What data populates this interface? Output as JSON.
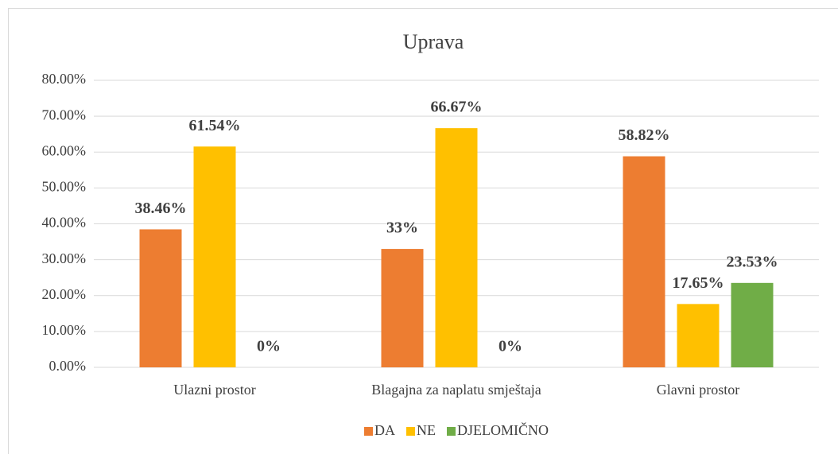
{
  "chart_data": {
    "type": "bar",
    "title": "Uprava",
    "categories": [
      "Ulazni prostor",
      "Blagajna za naplatu smještaja",
      "Glavni prostor"
    ],
    "series": [
      {
        "name": "DA",
        "color": "#ed7d31",
        "values": [
          38.46,
          33,
          58.82
        ],
        "value_labels": [
          "38.46%",
          "33%",
          "58.82%"
        ]
      },
      {
        "name": "NE",
        "color": "#ffc000",
        "values": [
          61.54,
          66.67,
          17.65
        ],
        "value_labels": [
          "61.54%",
          "66.67%",
          "17.65%"
        ]
      },
      {
        "name": "DJELOMIČNO",
        "color": "#70ad47",
        "values": [
          0,
          0,
          23.53
        ],
        "value_labels": [
          "0%",
          "0%",
          "23.53%"
        ]
      }
    ],
    "ylim": [
      0,
      80
    ],
    "yticks": [
      {
        "value": 0,
        "label": "0.00%"
      },
      {
        "value": 10,
        "label": "10.00%"
      },
      {
        "value": 20,
        "label": "20.00%"
      },
      {
        "value": 30,
        "label": "30.00%"
      },
      {
        "value": 40,
        "label": "40.00%"
      },
      {
        "value": 50,
        "label": "50.00%"
      },
      {
        "value": 60,
        "label": "60.00%"
      },
      {
        "value": 70,
        "label": "70.00%"
      },
      {
        "value": 80,
        "label": "80.00%"
      }
    ],
    "grid": true,
    "legend": "bottom"
  }
}
